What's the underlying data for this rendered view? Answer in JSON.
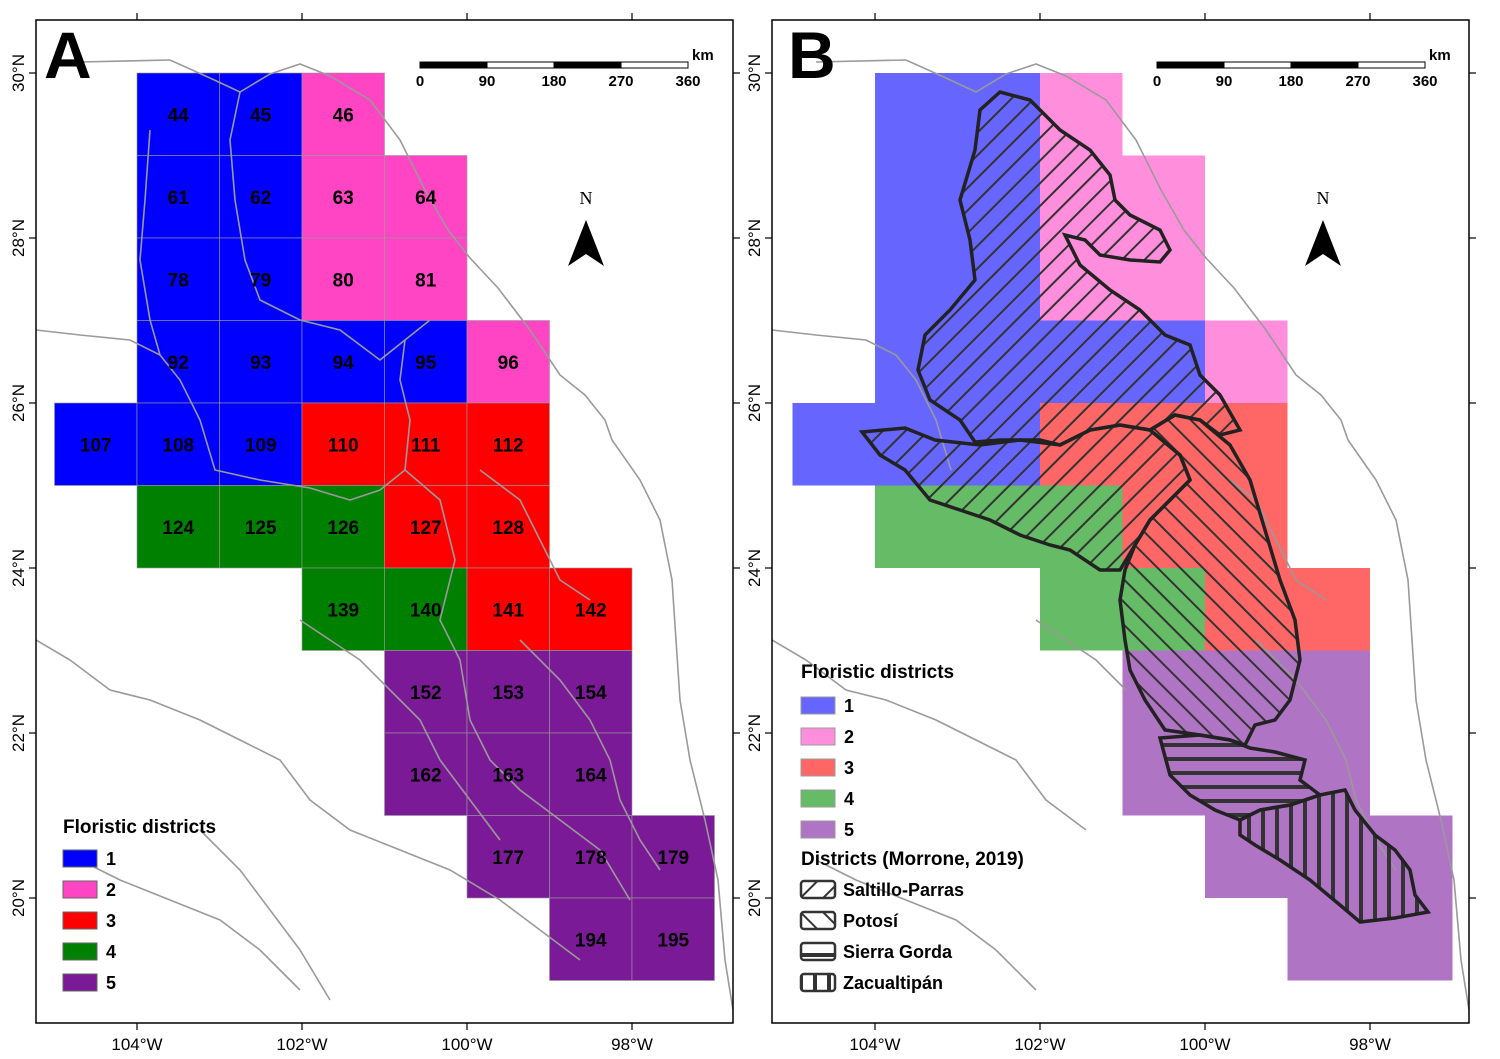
{
  "panels": [
    {
      "id": "A",
      "letter": "A",
      "scale_bar": {
        "ticks": [
          "0",
          "90",
          "180",
          "270",
          "360"
        ],
        "unit": "km"
      },
      "north_label": "N"
    },
    {
      "id": "B",
      "letter": "B",
      "scale_bar": {
        "ticks": [
          "0",
          "90",
          "180",
          "270",
          "360"
        ],
        "unit": "km"
      },
      "north_label": "N"
    }
  ],
  "axes": {
    "lon_ticks": [
      -104,
      -102,
      -100,
      -98
    ],
    "lon_labels": [
      "104°W",
      "102°W",
      "100°W",
      "98°W"
    ],
    "lat_ticks": [
      20,
      22,
      24,
      26,
      28,
      30
    ],
    "lat_labels": [
      "20°N",
      "22°N",
      "24°N",
      "26°N",
      "28°N",
      "30°N"
    ]
  },
  "district_colors_A": {
    "1": "#0000ff",
    "2": "#ff44c4",
    "3": "#ff0000",
    "4": "#008000",
    "5": "#7a1a96"
  },
  "district_colors_B": {
    "1": "#6666ff",
    "2": "#ff8fdc",
    "3": "#ff6666",
    "4": "#66bb66",
    "5": "#b074c4"
  },
  "grid_cells": [
    {
      "id": "44",
      "lon": -104,
      "lat": 30,
      "district": 1
    },
    {
      "id": "45",
      "lon": -103,
      "lat": 30,
      "district": 1
    },
    {
      "id": "46",
      "lon": -102,
      "lat": 30,
      "district": 2
    },
    {
      "id": "61",
      "lon": -104,
      "lat": 29,
      "district": 1
    },
    {
      "id": "62",
      "lon": -103,
      "lat": 29,
      "district": 1
    },
    {
      "id": "63",
      "lon": -102,
      "lat": 29,
      "district": 2
    },
    {
      "id": "64",
      "lon": -101,
      "lat": 29,
      "district": 2
    },
    {
      "id": "78",
      "lon": -104,
      "lat": 28,
      "district": 1
    },
    {
      "id": "79",
      "lon": -103,
      "lat": 28,
      "district": 1
    },
    {
      "id": "80",
      "lon": -102,
      "lat": 28,
      "district": 2
    },
    {
      "id": "81",
      "lon": -101,
      "lat": 28,
      "district": 2
    },
    {
      "id": "92",
      "lon": -104,
      "lat": 27,
      "district": 1
    },
    {
      "id": "93",
      "lon": -103,
      "lat": 27,
      "district": 1
    },
    {
      "id": "94",
      "lon": -102,
      "lat": 27,
      "district": 1
    },
    {
      "id": "95",
      "lon": -101,
      "lat": 27,
      "district": 1
    },
    {
      "id": "96",
      "lon": -100,
      "lat": 27,
      "district": 2
    },
    {
      "id": "107",
      "lon": -105,
      "lat": 26,
      "district": 1
    },
    {
      "id": "108",
      "lon": -104,
      "lat": 26,
      "district": 1
    },
    {
      "id": "109",
      "lon": -103,
      "lat": 26,
      "district": 1
    },
    {
      "id": "110",
      "lon": -102,
      "lat": 26,
      "district": 3
    },
    {
      "id": "111",
      "lon": -101,
      "lat": 26,
      "district": 3
    },
    {
      "id": "112",
      "lon": -100,
      "lat": 26,
      "district": 3
    },
    {
      "id": "124",
      "lon": -104,
      "lat": 25,
      "district": 4
    },
    {
      "id": "125",
      "lon": -103,
      "lat": 25,
      "district": 4
    },
    {
      "id": "126",
      "lon": -102,
      "lat": 25,
      "district": 4
    },
    {
      "id": "127",
      "lon": -101,
      "lat": 25,
      "district": 3
    },
    {
      "id": "128",
      "lon": -100,
      "lat": 25,
      "district": 3
    },
    {
      "id": "139",
      "lon": -102,
      "lat": 24,
      "district": 4
    },
    {
      "id": "140",
      "lon": -101,
      "lat": 24,
      "district": 4
    },
    {
      "id": "141",
      "lon": -100,
      "lat": 24,
      "district": 3
    },
    {
      "id": "142",
      "lon": -99,
      "lat": 24,
      "district": 3
    },
    {
      "id": "152",
      "lon": -101,
      "lat": 23,
      "district": 5
    },
    {
      "id": "153",
      "lon": -100,
      "lat": 23,
      "district": 5
    },
    {
      "id": "154",
      "lon": -99,
      "lat": 23,
      "district": 5
    },
    {
      "id": "162",
      "lon": -101,
      "lat": 22,
      "district": 5
    },
    {
      "id": "163",
      "lon": -100,
      "lat": 22,
      "district": 5
    },
    {
      "id": "164",
      "lon": -99,
      "lat": 22,
      "district": 5
    },
    {
      "id": "177",
      "lon": -100,
      "lat": 21,
      "district": 5
    },
    {
      "id": "178",
      "lon": -99,
      "lat": 21,
      "district": 5
    },
    {
      "id": "179",
      "lon": -98,
      "lat": 21,
      "district": 5
    },
    {
      "id": "194",
      "lon": -99,
      "lat": 20,
      "district": 5
    },
    {
      "id": "195",
      "lon": -98,
      "lat": 20,
      "district": 5
    }
  ],
  "legend_A": {
    "title": "Floristic districts",
    "items": [
      {
        "label": "1",
        "district": 1
      },
      {
        "label": "2",
        "district": 2
      },
      {
        "label": "3",
        "district": 3
      },
      {
        "label": "4",
        "district": 4
      },
      {
        "label": "5",
        "district": 5
      }
    ]
  },
  "legend_B": {
    "title": "Floristic districts",
    "items": [
      {
        "label": "1",
        "district": 1
      },
      {
        "label": "2",
        "district": 2
      },
      {
        "label": "3",
        "district": 3
      },
      {
        "label": "4",
        "district": 4
      },
      {
        "label": "5",
        "district": 5
      }
    ],
    "morrone_title": "Districts (Morrone, 2019)",
    "morrone_items": [
      {
        "label": "Saltillo-Parras",
        "pattern": "diag-right"
      },
      {
        "label": "Potosí",
        "pattern": "diag-left"
      },
      {
        "label": "Sierra Gorda",
        "pattern": "horizontal"
      },
      {
        "label": "Zacualtipán",
        "pattern": "vertical"
      }
    ]
  },
  "colors": {
    "border_lines": "#9a9a9a",
    "outline": "#222222",
    "hatch": "#333333"
  }
}
